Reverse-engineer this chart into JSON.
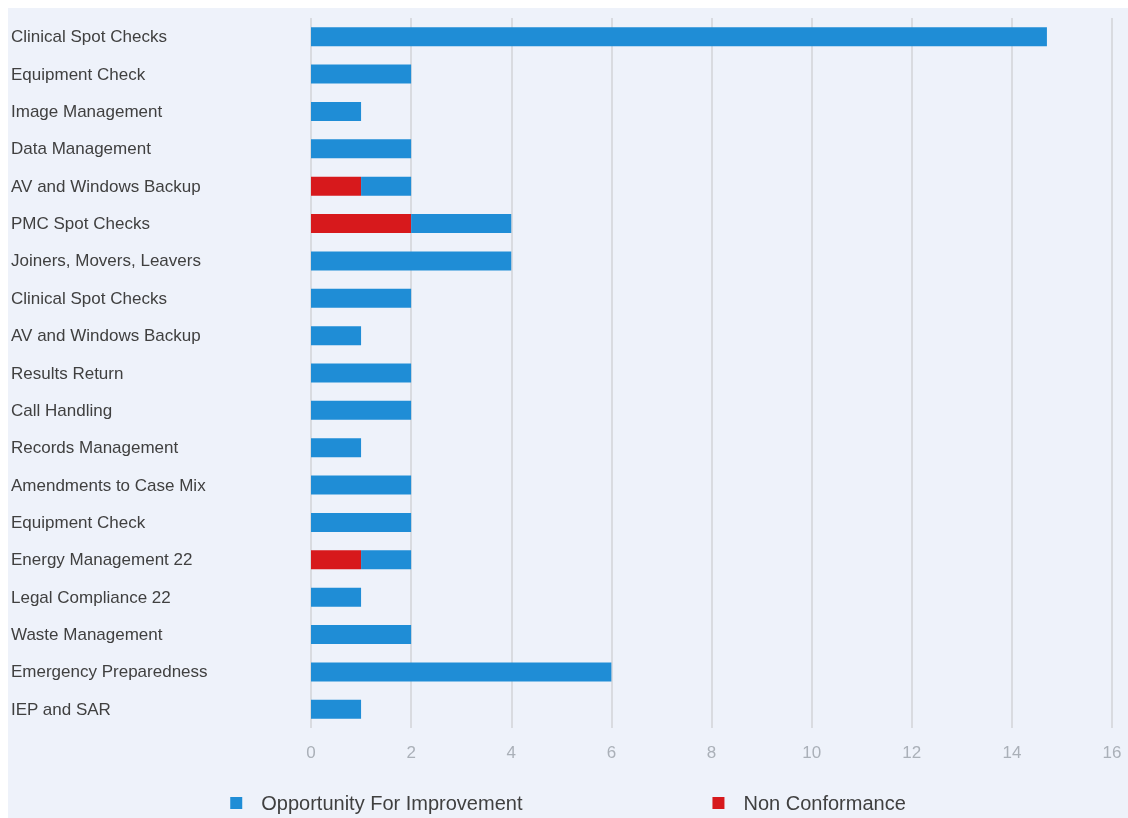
{
  "chart_data": {
    "type": "bar",
    "orientation": "horizontal",
    "stacked": true,
    "categories": [
      "Clinical Spot Checks",
      "Equipment Check",
      "Image Management",
      "Data Management",
      "AV and Windows Backup",
      "PMC Spot Checks",
      "Joiners, Movers, Leavers",
      "Clinical Spot Checks",
      "AV and Windows Backup",
      "Results Return",
      "Call Handling",
      "Records Management",
      "Amendments to Case Mix",
      "Equipment Check",
      "Energy Management 22",
      "Legal Compliance 22",
      "Waste Management",
      "Emergency Preparedness",
      "IEP and SAR"
    ],
    "series": [
      {
        "name": "Non Conformance",
        "color": "#d7191c",
        "values": [
          null,
          null,
          null,
          null,
          1,
          2,
          null,
          null,
          null,
          null,
          null,
          null,
          null,
          null,
          1,
          null,
          null,
          null,
          null
        ]
      },
      {
        "name": "Opportunity For Improvement",
        "color": "#1f8dd6",
        "values": [
          14.7,
          2,
          1,
          2,
          1,
          2,
          4,
          2,
          1,
          2,
          2,
          1,
          2,
          2,
          1,
          1,
          2,
          6,
          1
        ]
      }
    ],
    "xlim": [
      0,
      16
    ],
    "xticks": [
      0,
      2,
      4,
      6,
      8,
      10,
      12,
      14,
      16
    ],
    "grid": "x",
    "legend": "bottom"
  }
}
